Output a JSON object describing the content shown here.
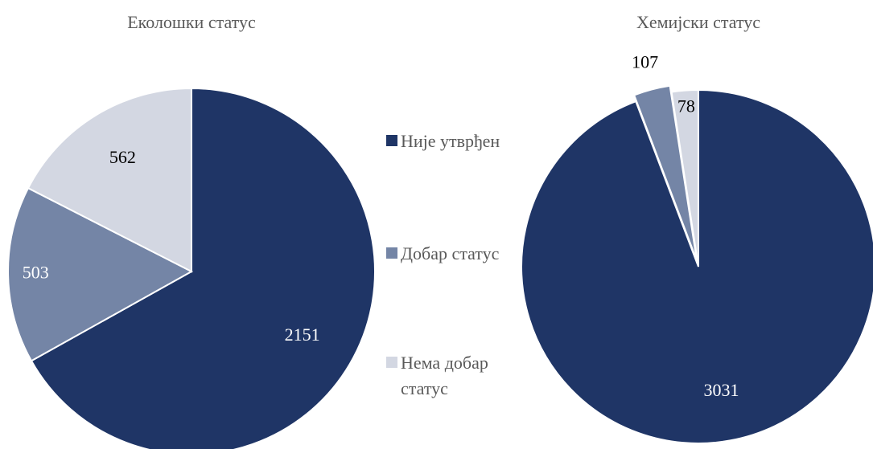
{
  "chart_data": [
    {
      "type": "pie",
      "title": "Еколошки статус",
      "categories": [
        "Није утврђен",
        "Добар статус",
        "Нема добар статус"
      ],
      "values": [
        2151,
        503,
        562
      ],
      "colors": [
        "#1f3566",
        "#7485a6",
        "#d3d7e2"
      ]
    },
    {
      "type": "pie",
      "title": "Хемијски статус",
      "categories": [
        "Није утврђен",
        "Добар статус",
        "Нема добар статус"
      ],
      "values": [
        3031,
        107,
        78
      ],
      "colors": [
        "#1f3566",
        "#7485a6",
        "#d3d7e2"
      ]
    }
  ]
}
